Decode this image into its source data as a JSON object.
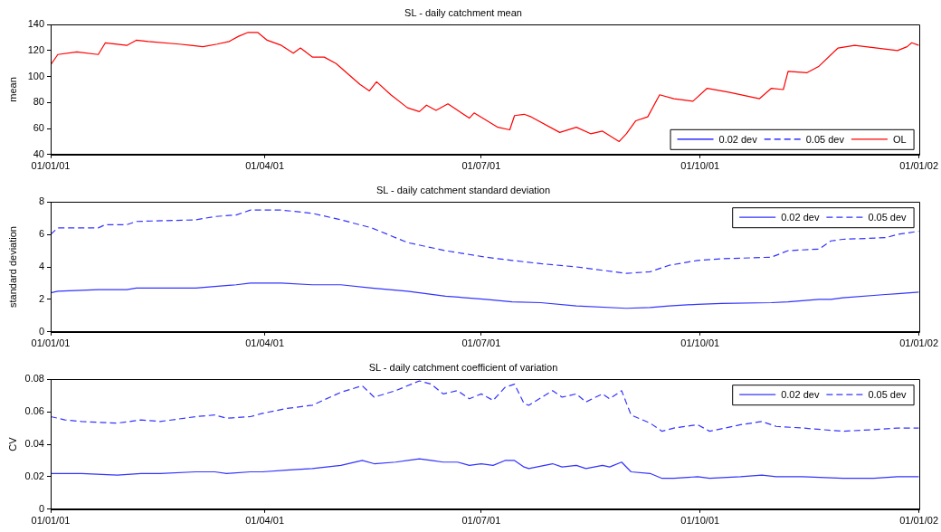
{
  "chart_data": [
    {
      "type": "line",
      "title": "SL - daily catchment mean",
      "ylabel": "mean",
      "xlim": [
        "2001-01-01",
        "2002-01-01"
      ],
      "xticks": [
        {
          "value": "2001-01-01",
          "label": "01/01/01"
        },
        {
          "value": "2001-04-01",
          "label": "01/04/01"
        },
        {
          "value": "2001-07-01",
          "label": "01/07/01"
        },
        {
          "value": "2001-10-01",
          "label": "01/10/01"
        },
        {
          "value": "2002-01-01",
          "label": "01/01/02"
        }
      ],
      "ylim": [
        40,
        140
      ],
      "yticks": [
        40,
        60,
        80,
        100,
        120,
        140
      ],
      "grid": false,
      "legend": "bottom right",
      "marker": "none",
      "x": [
        "2001-01-01",
        "2001-01-04",
        "2001-01-12",
        "2001-01-21",
        "2001-01-24",
        "2001-02-02",
        "2001-02-06",
        "2001-02-11",
        "2001-02-24",
        "2001-03-01",
        "2001-03-06",
        "2001-03-12",
        "2001-03-17",
        "2001-03-21",
        "2001-03-25",
        "2001-03-29",
        "2001-04-02",
        "2001-04-08",
        "2001-04-13",
        "2001-04-16",
        "2001-04-21",
        "2001-04-26",
        "2001-05-01",
        "2001-05-11",
        "2001-05-15",
        "2001-05-18",
        "2001-05-24",
        "2001-05-31",
        "2001-06-05",
        "2001-06-08",
        "2001-06-12",
        "2001-06-17",
        "2001-06-26",
        "2001-06-28",
        "2001-07-08",
        "2001-07-13",
        "2001-07-15",
        "2001-07-19",
        "2001-07-22",
        "2001-08-03",
        "2001-08-10",
        "2001-08-16",
        "2001-08-21",
        "2001-08-28",
        "2001-08-31",
        "2001-09-04",
        "2001-09-09",
        "2001-09-14",
        "2001-09-20",
        "2001-09-28",
        "2001-10-04",
        "2001-10-13",
        "2001-10-26",
        "2001-10-31",
        "2001-11-05",
        "2001-11-07",
        "2001-11-15",
        "2001-11-20",
        "2001-11-28",
        "2001-12-05",
        "2001-12-23",
        "2001-12-27",
        "2001-12-29",
        "2002-01-01"
      ],
      "series": [
        {
          "name": "0.02 dev",
          "color": "#0000ff",
          "line_style": "solid",
          "values": [
            null,
            null,
            null,
            null,
            null,
            null,
            null,
            null,
            null,
            null,
            null,
            null,
            null,
            null,
            null,
            null,
            null,
            null,
            null,
            null,
            null,
            null,
            null,
            null,
            null,
            null,
            null,
            null,
            null,
            null,
            null,
            null,
            null,
            null,
            null,
            null,
            null,
            null,
            null,
            null,
            null,
            null,
            null,
            null,
            null,
            null,
            null,
            null,
            null,
            null,
            null,
            null,
            null,
            null,
            null,
            null,
            null,
            null,
            null,
            null,
            null,
            null,
            null,
            null
          ]
        },
        {
          "name": "0.05 dev",
          "color": "#0000ff",
          "line_style": "dashed",
          "values": [
            null,
            null,
            null,
            null,
            null,
            null,
            null,
            null,
            null,
            null,
            null,
            null,
            null,
            null,
            null,
            null,
            null,
            null,
            null,
            null,
            null,
            null,
            null,
            null,
            null,
            null,
            null,
            null,
            null,
            null,
            null,
            null,
            null,
            null,
            null,
            null,
            null,
            null,
            null,
            null,
            null,
            null,
            null,
            null,
            null,
            null,
            null,
            null,
            null,
            null,
            null,
            null,
            null,
            null,
            null,
            null,
            null,
            null,
            null,
            null,
            null,
            null,
            null,
            null
          ]
        },
        {
          "name": "OL",
          "color": "#ff0000",
          "line_style": "solid",
          "values": [
            109,
            117,
            119,
            117,
            126,
            124,
            128,
            127,
            125,
            124,
            123,
            125,
            127,
            131,
            134,
            134,
            128,
            124,
            118,
            122,
            115,
            115,
            110,
            94,
            89,
            96,
            86,
            76,
            73,
            78,
            74,
            79,
            68,
            72,
            61,
            59,
            70,
            71,
            69,
            57,
            61,
            56,
            58,
            50,
            56,
            66,
            69,
            86,
            83,
            81,
            91,
            88,
            83,
            91,
            90,
            104,
            103,
            108,
            122,
            124,
            120,
            123,
            126,
            124
          ]
        }
      ]
    },
    {
      "type": "line",
      "title": "SL - daily catchment standard deviation",
      "ylabel": "standard deviation",
      "xlim": [
        "2001-01-01",
        "2002-01-01"
      ],
      "xticks": [
        {
          "value": "2001-01-01",
          "label": "01/01/01"
        },
        {
          "value": "2001-04-01",
          "label": "01/04/01"
        },
        {
          "value": "2001-07-01",
          "label": "01/07/01"
        },
        {
          "value": "2001-10-01",
          "label": "01/10/01"
        },
        {
          "value": "2002-01-01",
          "label": "01/01/02"
        }
      ],
      "ylim": [
        0,
        8
      ],
      "yticks": [
        0,
        2,
        4,
        6,
        8
      ],
      "grid": false,
      "legend": "top right",
      "marker": "none",
      "x": [
        "2001-01-01",
        "2001-01-04",
        "2001-01-21",
        "2001-01-24",
        "2001-02-02",
        "2001-02-06",
        "2001-03-03",
        "2001-03-11",
        "2001-03-20",
        "2001-03-26",
        "2001-04-08",
        "2001-04-21",
        "2001-05-03",
        "2001-05-16",
        "2001-05-31",
        "2001-06-16",
        "2001-07-03",
        "2001-07-14",
        "2001-07-26",
        "2001-08-10",
        "2001-08-31",
        "2001-09-10",
        "2001-09-18",
        "2001-09-30",
        "2001-10-10",
        "2001-10-31",
        "2001-11-07",
        "2001-11-20",
        "2001-11-25",
        "2001-11-30",
        "2001-12-18",
        "2001-12-23",
        "2002-01-01"
      ],
      "series": [
        {
          "name": "0.02 dev",
          "color": "#3333ff",
          "line_style": "solid",
          "values": [
            2.4,
            2.5,
            2.6,
            2.6,
            2.6,
            2.7,
            2.7,
            2.8,
            2.9,
            3.0,
            3.0,
            2.9,
            2.9,
            2.7,
            2.5,
            2.2,
            2.0,
            1.85,
            1.8,
            1.6,
            1.45,
            1.5,
            1.6,
            1.7,
            1.75,
            1.8,
            1.85,
            2.0,
            2.0,
            2.1,
            2.3,
            2.35,
            2.45
          ]
        },
        {
          "name": "0.05 dev",
          "color": "#3333ff",
          "line_style": "dashed",
          "values": [
            6.0,
            6.4,
            6.4,
            6.6,
            6.6,
            6.8,
            6.9,
            7.1,
            7.2,
            7.5,
            7.5,
            7.3,
            6.9,
            6.4,
            5.5,
            5.0,
            4.6,
            4.4,
            4.2,
            4.0,
            3.6,
            3.7,
            4.1,
            4.4,
            4.5,
            4.6,
            5.0,
            5.1,
            5.6,
            5.7,
            5.8,
            6.0,
            6.2
          ]
        }
      ]
    },
    {
      "type": "line",
      "title": "SL - daily catchment coefficient of variation",
      "ylabel": "CV",
      "xlim": [
        "2001-01-01",
        "2002-01-01"
      ],
      "xticks": [
        {
          "value": "2001-01-01",
          "label": "01/01/01"
        },
        {
          "value": "2001-04-01",
          "label": "01/04/01"
        },
        {
          "value": "2001-07-01",
          "label": "01/07/01"
        },
        {
          "value": "2001-10-01",
          "label": "01/10/01"
        },
        {
          "value": "2002-01-01",
          "label": "01/01/02"
        }
      ],
      "ylim": [
        0,
        0.08
      ],
      "yticks": [
        {
          "value": 0,
          "label": "0"
        },
        {
          "value": 0.02,
          "label": "0.02"
        },
        {
          "value": 0.04,
          "label": "0.04"
        },
        {
          "value": 0.06,
          "label": "0.06"
        },
        {
          "value": 0.08,
          "label": "0.08"
        }
      ],
      "grid": false,
      "legend": "top right",
      "marker": "none",
      "x": [
        "2001-01-01",
        "2001-01-07",
        "2001-01-14",
        "2001-01-29",
        "2001-02-08",
        "2001-02-16",
        "2001-03-03",
        "2001-03-11",
        "2001-03-16",
        "2001-03-26",
        "2001-03-31",
        "2001-04-10",
        "2001-04-21",
        "2001-05-03",
        "2001-05-12",
        "2001-05-17",
        "2001-05-26",
        "2001-06-05",
        "2001-06-10",
        "2001-06-15",
        "2001-06-21",
        "2001-06-26",
        "2001-07-01",
        "2001-07-06",
        "2001-07-11",
        "2001-07-15",
        "2001-07-19",
        "2001-07-21",
        "2001-07-31",
        "2001-08-04",
        "2001-08-10",
        "2001-08-14",
        "2001-08-21",
        "2001-08-24",
        "2001-08-29",
        "2001-09-02",
        "2001-09-10",
        "2001-09-15",
        "2001-09-20",
        "2001-09-30",
        "2001-10-05",
        "2001-10-18",
        "2001-10-27",
        "2001-11-02",
        "2001-11-13",
        "2001-11-30",
        "2001-12-13",
        "2001-12-23",
        "2002-01-01"
      ],
      "series": [
        {
          "name": "0.02 dev",
          "color": "#3333ff",
          "line_style": "solid",
          "values": [
            0.022,
            0.022,
            0.022,
            0.021,
            0.022,
            0.022,
            0.023,
            0.023,
            0.022,
            0.023,
            0.023,
            0.024,
            0.025,
            0.027,
            0.03,
            0.028,
            0.029,
            0.031,
            0.03,
            0.029,
            0.029,
            0.027,
            0.028,
            0.027,
            0.03,
            0.03,
            0.026,
            0.025,
            0.028,
            0.026,
            0.027,
            0.025,
            0.027,
            0.026,
            0.029,
            0.023,
            0.022,
            0.019,
            0.019,
            0.02,
            0.019,
            0.02,
            0.021,
            0.02,
            0.02,
            0.019,
            0.019,
            0.02,
            0.02
          ]
        },
        {
          "name": "0.05 dev",
          "color": "#3333ff",
          "line_style": "dashed",
          "values": [
            0.057,
            0.055,
            0.054,
            0.053,
            0.055,
            0.054,
            0.057,
            0.058,
            0.056,
            0.057,
            0.059,
            0.062,
            0.064,
            0.072,
            0.076,
            0.069,
            0.073,
            0.079,
            0.077,
            0.071,
            0.073,
            0.068,
            0.071,
            0.067,
            0.075,
            0.077,
            0.065,
            0.064,
            0.073,
            0.069,
            0.071,
            0.066,
            0.071,
            0.068,
            0.073,
            0.058,
            0.053,
            0.048,
            0.05,
            0.052,
            0.048,
            0.052,
            0.054,
            0.051,
            0.05,
            0.048,
            0.049,
            0.05,
            0.05
          ]
        }
      ]
    }
  ]
}
